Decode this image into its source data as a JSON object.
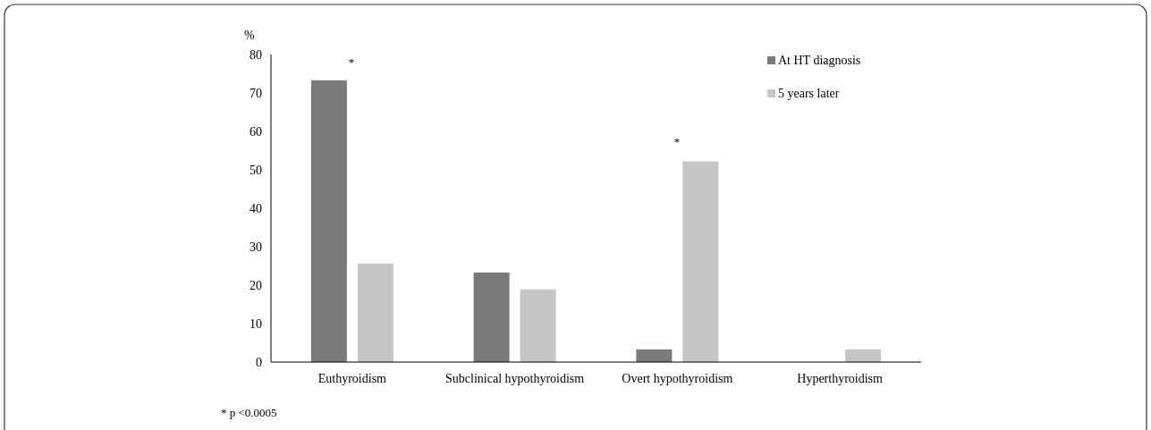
{
  "chart_data": {
    "type": "bar",
    "ylabel": "%",
    "categories": [
      "Euthyroidism",
      "Subclinical hypothyroidism",
      "Overt hypothyroidism",
      "Hyperthyroidism"
    ],
    "series": [
      {
        "name": "At HT diagnosis",
        "color": "#7a7a7a",
        "values": [
          73.3,
          23.3,
          3.3,
          0
        ]
      },
      {
        "name": "5 years later",
        "color": "#c4c6c5",
        "values": [
          25.6,
          18.9,
          52.2,
          3.3
        ]
      }
    ],
    "ylim": [
      0,
      80
    ],
    "yticks": [
      0,
      10,
      20,
      30,
      40,
      50,
      60,
      70,
      80
    ],
    "grid": false,
    "legend": "top right",
    "annotations": [
      "*",
      "*",
      "* p <0.0005"
    ]
  }
}
